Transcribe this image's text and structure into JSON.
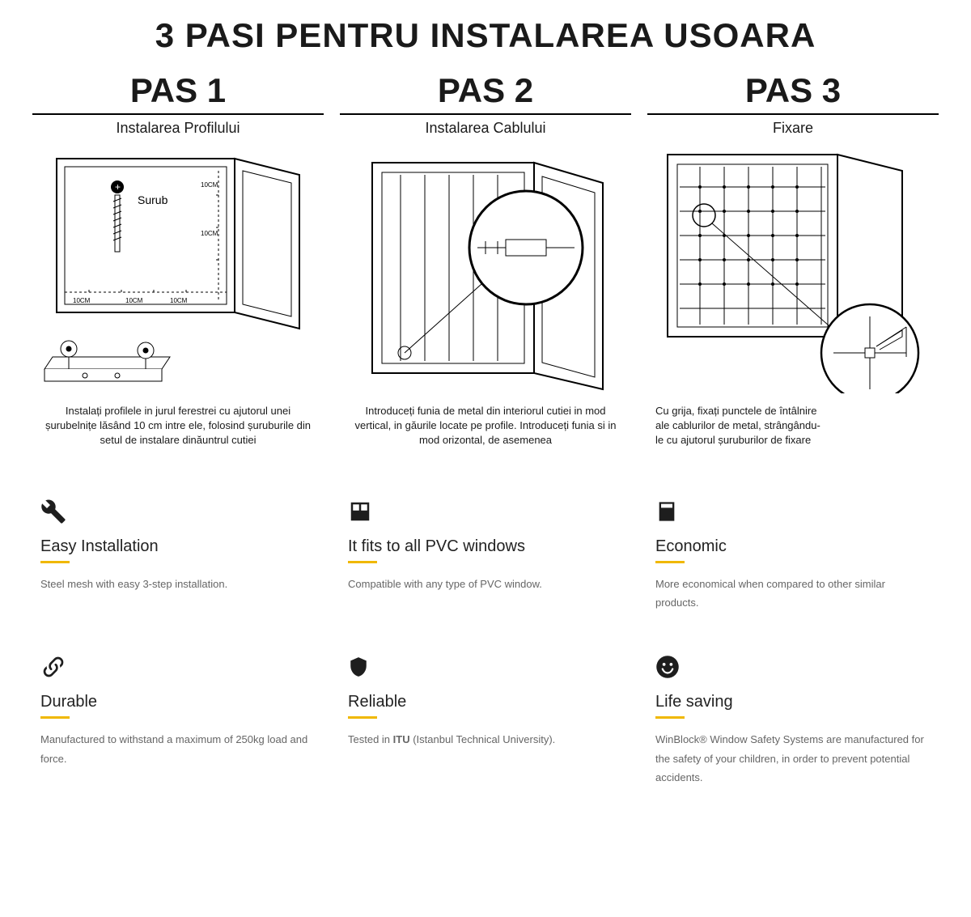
{
  "main_title": "3 PASI PENTRU INSTALAREA USOARA",
  "colors": {
    "bg": "#ffffff",
    "ink": "#1a1a1a",
    "muted": "#666666",
    "accent": "#f0b800"
  },
  "steps": [
    {
      "label": "PAS 1",
      "sub": "Instalarea Profilului",
      "screw_label": "Surub",
      "spacing_label": "10CM",
      "caption": "Instalați profilele in jurul ferestrei cu ajutorul unei șurubelnițe lăsând 10 cm intre ele, folosind șuruburile din setul de instalare dinăuntrul cutiei"
    },
    {
      "label": "PAS 2",
      "sub": "Instalarea Cablului",
      "caption": "Introduceți funia de metal din interiorul cutiei in mod vertical, in găurile locate pe profile. Introduceți funia si in mod orizontal, de asemenea"
    },
    {
      "label": "PAS 3",
      "sub": "Fixare",
      "caption": "Cu grija, fixați punctele de întâlnire ale cablurilor de metal, strângându-le cu ajutorul șuruburilor de fixare"
    }
  ],
  "features": [
    {
      "icon": "wrench",
      "title": "Easy Installation",
      "desc": "Steel mesh with easy 3-step installation."
    },
    {
      "icon": "window",
      "title": "It fits to all PVC windows",
      "desc": "Compatible with any type of PVC window."
    },
    {
      "icon": "calc",
      "title": "Economic",
      "desc": "More economical when compared to other similar products."
    },
    {
      "icon": "chain",
      "title": "Durable",
      "desc": "Manufactured to withstand a maximum of 250kg load and force."
    },
    {
      "icon": "shield",
      "title": "Reliable",
      "desc_html": "Tested in <b>ITU</b> (Istanbul Technical University)."
    },
    {
      "icon": "smile",
      "title": "Life saving",
      "desc": "WinBlock® Window Safety Systems are manufactured for the safety of your children, in order to prevent potential accidents."
    }
  ]
}
